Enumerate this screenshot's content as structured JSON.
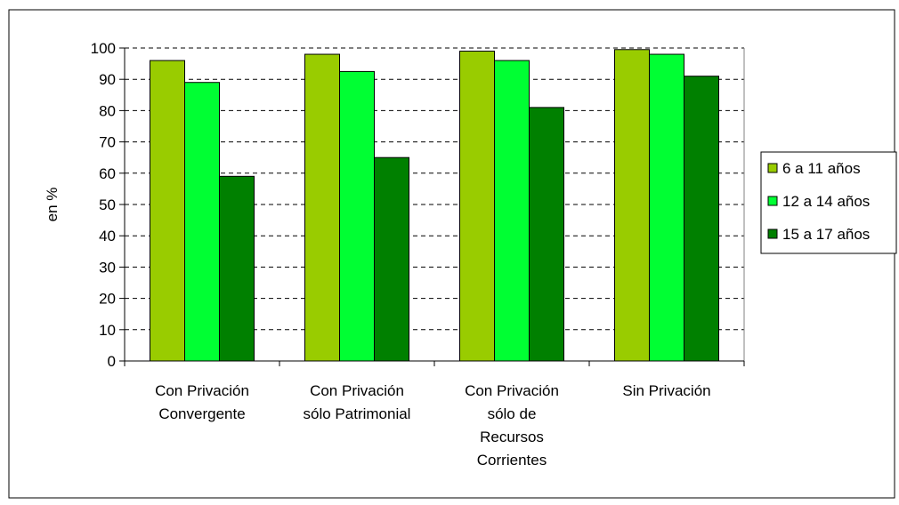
{
  "chart_data": {
    "type": "bar",
    "title": "",
    "xlabel": "",
    "ylabel": "en %",
    "ylim": [
      0,
      100
    ],
    "yticks": [
      0,
      10,
      20,
      30,
      40,
      50,
      60,
      70,
      80,
      90,
      100
    ],
    "grid": true,
    "legend_position": "right",
    "categories": [
      [
        "Con Privación",
        "Convergente"
      ],
      [
        "Con Privación",
        "sólo Patrimonial"
      ],
      [
        "Con Privación",
        "sólo de",
        "Recursos",
        "Corrientes"
      ],
      [
        "Sin Privación"
      ]
    ],
    "series": [
      {
        "name": "6 a 11 años",
        "color": "#99cc00",
        "values": [
          96,
          98,
          99,
          99.5
        ]
      },
      {
        "name": "12 a 14 años",
        "color": "#00ff33",
        "values": [
          89,
          92.5,
          96,
          98
        ]
      },
      {
        "name": "15 a 17 años",
        "color": "#008000",
        "values": [
          59,
          65,
          81,
          91
        ]
      }
    ]
  }
}
